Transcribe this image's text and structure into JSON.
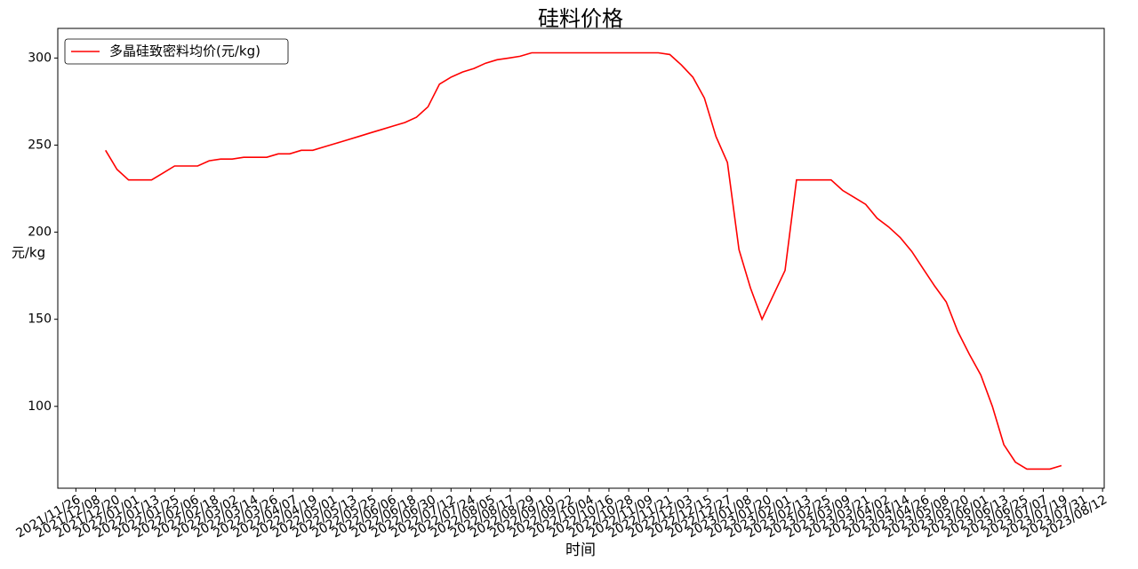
{
  "chart_data": {
    "type": "line",
    "title": "硅料价格",
    "x_label": "时间",
    "y_label": "元/kg",
    "legend": "upper left",
    "grid": false,
    "x": [
      "2021/12/14",
      "2021/12/21",
      "2021/12/28",
      "2022/01/04",
      "2022/01/11",
      "2022/01/18",
      "2022/01/25",
      "2022/02/01",
      "2022/02/08",
      "2022/02/15",
      "2022/02/22",
      "2022/03/01",
      "2022/03/08",
      "2022/03/15",
      "2022/03/22",
      "2022/03/29",
      "2022/04/05",
      "2022/04/12",
      "2022/04/19",
      "2022/04/26",
      "2022/05/03",
      "2022/05/10",
      "2022/05/17",
      "2022/05/24",
      "2022/05/31",
      "2022/06/07",
      "2022/06/14",
      "2022/06/21",
      "2022/06/28",
      "2022/07/05",
      "2022/07/12",
      "2022/07/19",
      "2022/07/26",
      "2022/08/02",
      "2022/08/09",
      "2022/08/16",
      "2022/08/23",
      "2022/08/30",
      "2022/09/06",
      "2022/09/13",
      "2022/09/20",
      "2022/09/27",
      "2022/10/04",
      "2022/10/11",
      "2022/10/18",
      "2022/10/25",
      "2022/11/01",
      "2022/11/08",
      "2022/11/15",
      "2022/11/22",
      "2022/11/29",
      "2022/12/06",
      "2022/12/13",
      "2022/12/20",
      "2022/12/27",
      "2023/01/03",
      "2023/01/10",
      "2023/01/17",
      "2023/01/24",
      "2023/01/31",
      "2023/02/07",
      "2023/02/14",
      "2023/02/21",
      "2023/02/28",
      "2023/03/07",
      "2023/03/14",
      "2023/03/21",
      "2023/03/28",
      "2023/04/04",
      "2023/04/11",
      "2023/04/18",
      "2023/04/25",
      "2023/05/02",
      "2023/05/09",
      "2023/05/16",
      "2023/05/23",
      "2023/05/30",
      "2023/06/06",
      "2023/06/13",
      "2023/06/20",
      "2023/06/27",
      "2023/07/04",
      "2023/07/11",
      "2023/07/18"
    ],
    "series": [
      {
        "name": "多晶硅致密料均价(元/kg)",
        "color": "#ff0000",
        "values": [
          247,
          236,
          230,
          230,
          230,
          234,
          238,
          238,
          238,
          241,
          242,
          242,
          243,
          243,
          243,
          245,
          245,
          247,
          247,
          249,
          251,
          253,
          255,
          257,
          259,
          261,
          263,
          266,
          272,
          285,
          289,
          292,
          294,
          297,
          299,
          300,
          301,
          303,
          303,
          303,
          303,
          303,
          303,
          303,
          303,
          303,
          303,
          303,
          303,
          302,
          296,
          289,
          277,
          255,
          240,
          190,
          168,
          150,
          164,
          178,
          230,
          230,
          230,
          230,
          224,
          220,
          216,
          208,
          203,
          197,
          189,
          179,
          169,
          160,
          143,
          130,
          118,
          100,
          78,
          68,
          64,
          64,
          64,
          66
        ]
      }
    ],
    "xlim": [
      "2021/11/15",
      "2023/08/13"
    ],
    "xticks": [
      "2021/11/26",
      "2021/12/08",
      "2021/12/20",
      "2022/01/01",
      "2022/01/13",
      "2022/01/25",
      "2022/02/06",
      "2022/02/18",
      "2022/03/02",
      "2022/03/14",
      "2022/03/26",
      "2022/04/07",
      "2022/04/19",
      "2022/05/01",
      "2022/05/13",
      "2022/05/25",
      "2022/06/06",
      "2022/06/18",
      "2022/06/30",
      "2022/07/12",
      "2022/07/24",
      "2022/08/05",
      "2022/08/17",
      "2022/08/29",
      "2022/09/10",
      "2022/09/22",
      "2022/10/04",
      "2022/10/16",
      "2022/10/28",
      "2022/11/09",
      "2022/11/21",
      "2022/12/03",
      "2022/12/15",
      "2022/12/27",
      "2023/01/08",
      "2023/01/20",
      "2023/02/01",
      "2023/02/13",
      "2023/02/25",
      "2023/03/09",
      "2023/03/21",
      "2023/04/02",
      "2023/04/14",
      "2023/04/26",
      "2023/05/08",
      "2023/05/20",
      "2023/06/01",
      "2023/06/13",
      "2023/06/25",
      "2023/07/07",
      "2023/07/19",
      "2023/07/31",
      "2023/08/12"
    ],
    "ylim": [
      53,
      317
    ],
    "yticks": [
      100,
      150,
      200,
      250,
      300
    ]
  }
}
